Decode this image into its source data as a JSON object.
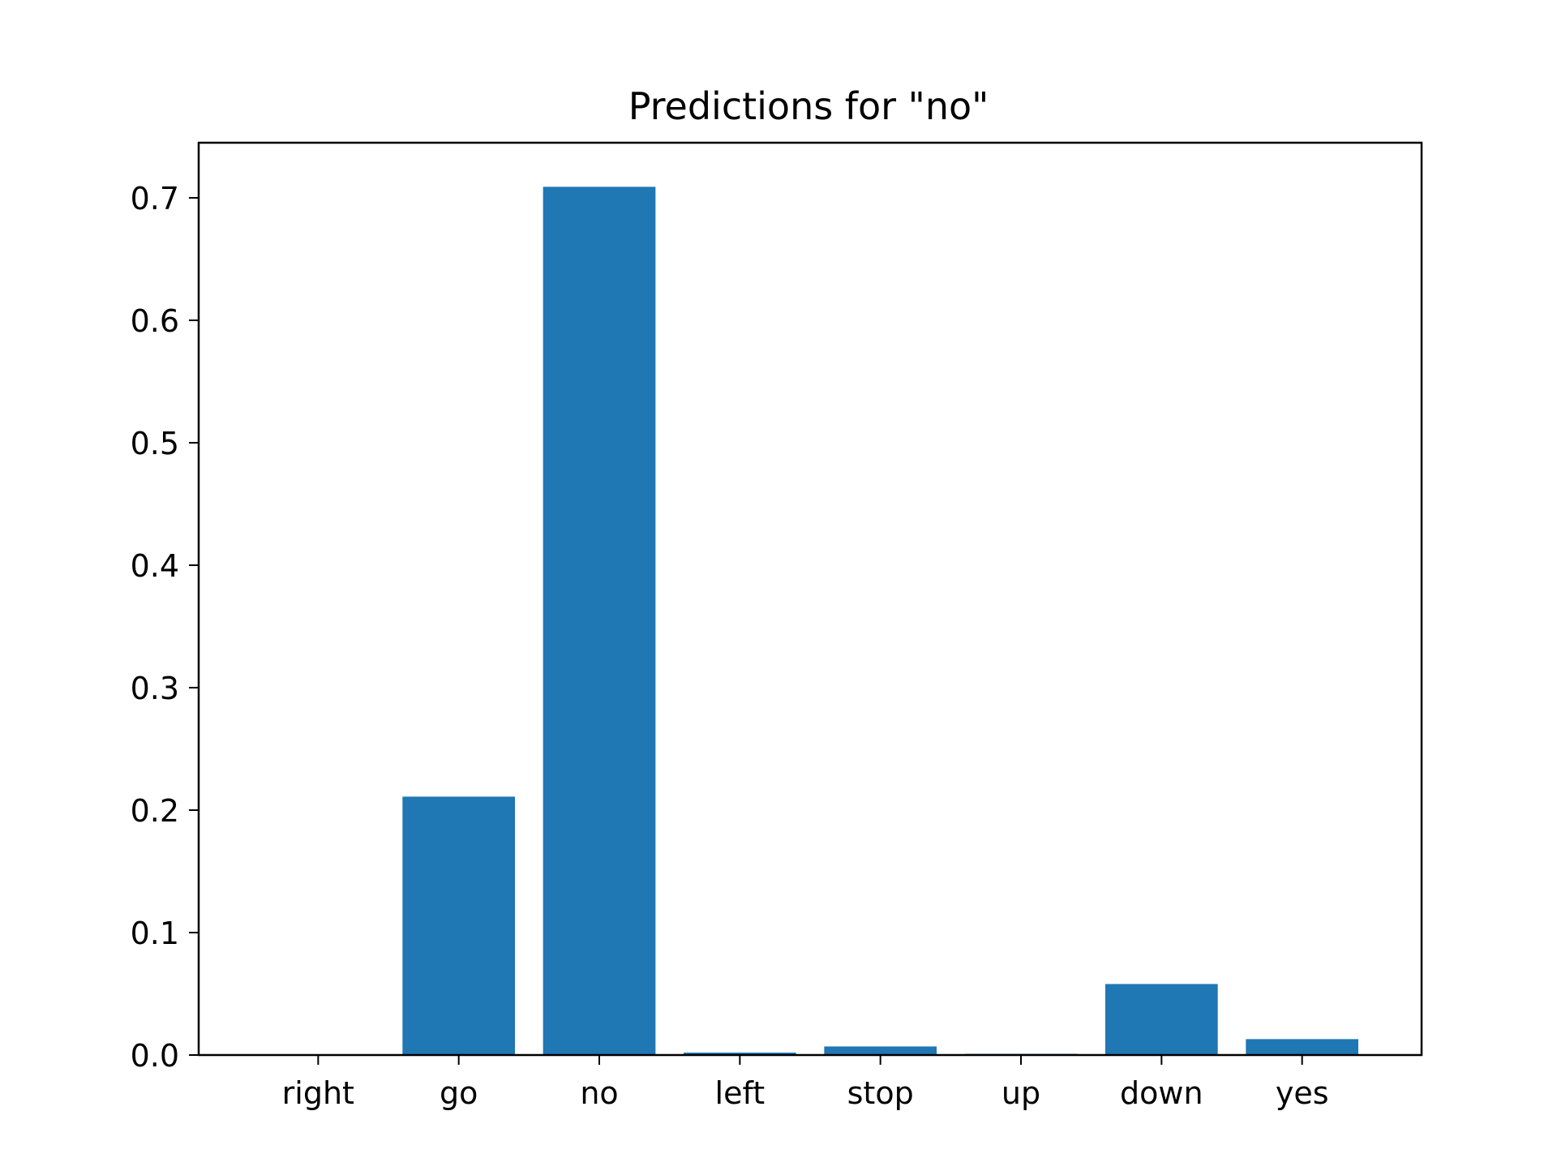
{
  "chart_data": {
    "type": "bar",
    "title": "Predictions for \"no\"",
    "xlabel": "",
    "ylabel": "",
    "categories": [
      "right",
      "go",
      "no",
      "left",
      "stop",
      "up",
      "down",
      "yes"
    ],
    "values": [
      0.0,
      0.211,
      0.709,
      0.002,
      0.007,
      0.001,
      0.058,
      0.013
    ],
    "ylim": [
      0,
      0.745
    ],
    "yticks": [
      0.0,
      0.1,
      0.2,
      0.3,
      0.4,
      0.5,
      0.6,
      0.7
    ],
    "ytick_labels": [
      "0.0",
      "0.1",
      "0.2",
      "0.3",
      "0.4",
      "0.5",
      "0.6",
      "0.7"
    ],
    "bar_color": "#1f77b4",
    "grid": false,
    "legend": "none"
  }
}
